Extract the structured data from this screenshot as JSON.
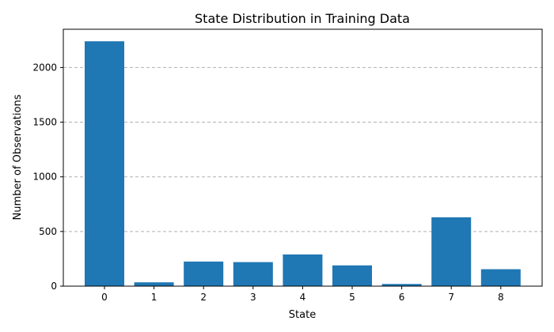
{
  "chart_data": {
    "type": "bar",
    "title": "State Distribution in Training Data",
    "xlabel": "State",
    "ylabel": "Number of Observations",
    "categories": [
      "0",
      "1",
      "2",
      "3",
      "4",
      "5",
      "6",
      "7",
      "8"
    ],
    "values": [
      2240,
      35,
      225,
      220,
      290,
      190,
      20,
      630,
      155
    ],
    "ylim": [
      0,
      2350
    ],
    "yticks": [
      "0",
      "500",
      "1000",
      "1500",
      "2000"
    ],
    "grid": "y-dashed",
    "bar_color": "#1f77b4",
    "grid_color": "#b0b0b0"
  }
}
